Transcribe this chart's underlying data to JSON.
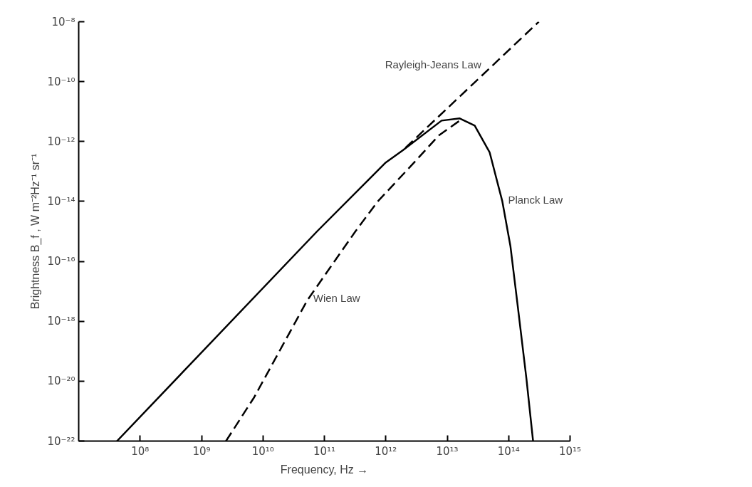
{
  "chart_data": {
    "type": "line",
    "xlabel": "Frequency, Hz →",
    "ylabel": "Brightness B_f , W m⁻²Hz⁻¹ sr⁻¹",
    "log": "xy",
    "grid": false,
    "marker": "none",
    "xlim": [
      10000000.0,
      1000000000000000.0
    ],
    "ylim": [
      1e-22,
      1e-08
    ],
    "xticks": [
      {
        "value": 100000000.0,
        "label": "10⁸"
      },
      {
        "value": 1000000000.0,
        "label": "10⁹"
      },
      {
        "value": 10000000000.0,
        "label": "10¹⁰"
      },
      {
        "value": 100000000000.0,
        "label": "10¹¹"
      },
      {
        "value": 1000000000000.0,
        "label": "10¹²"
      },
      {
        "value": 10000000000000.0,
        "label": "10¹³"
      },
      {
        "value": 100000000000000.0,
        "label": "10¹⁴"
      },
      {
        "value": 1000000000000000.0,
        "label": "10¹⁵"
      }
    ],
    "yticks": [
      {
        "value": 1e-22,
        "label": "10⁻²²"
      },
      {
        "value": 1e-20,
        "label": "10⁻²⁰"
      },
      {
        "value": 1e-18,
        "label": "10⁻¹⁸"
      },
      {
        "value": 1e-16,
        "label": "10⁻¹⁶"
      },
      {
        "value": 1e-14,
        "label": "10⁻¹⁴"
      },
      {
        "value": 1e-12,
        "label": "10⁻¹²"
      },
      {
        "value": 1e-10,
        "label": "10⁻¹⁰"
      },
      {
        "value": 1e-08,
        "label": "10⁻⁸"
      }
    ],
    "series": [
      {
        "color": "#000000",
        "line_style": "solid",
        "x": [
          42000000.0,
          76000000000.0,
          1000000000000.0,
          1900000000000.0,
          8100000000000.0,
          16000000000000.0,
          28000000000000.0,
          49000000000000.0,
          79000000000000.0,
          107000000000000.0,
          140000000000000.0,
          195000000000000.0,
          250000000000000.0
        ],
        "values": [
          1e-22,
          1e-15,
          2e-13,
          5.1e-13,
          5e-12,
          5.9e-12,
          3.4e-12,
          4.4e-13,
          1e-14,
          3.2e-16,
          3.5e-18,
          1.2e-20,
          1e-22
        ]
      },
      {
        "color": "#000000",
        "line_style": "dashed",
        "x": [
          2100000000000.0,
          310000000000000.0
        ],
        "values": [
          6.2e-13,
          1e-08
        ]
      },
      {
        "color": "#000000",
        "line_style": "dashed",
        "x": [
          2500000000.0,
          7200000000.0,
          53000000000.0,
          320000000000.0,
          740000000000.0,
          2900000000000.0,
          7300000000000.0,
          16000000000000.0
        ],
        "values": [
          1e-22,
          2.9e-21,
          5.1e-18,
          1e-15,
          1e-14,
          2e-13,
          1.6e-12,
          5e-12
        ]
      }
    ],
    "annotations": [
      {
        "text": "Rayleigh-Jeans Law",
        "x": 52000000000000.0,
        "y": 3.2e-10
      },
      {
        "text": "Planck Law",
        "x": 79000000000000.0,
        "y": 1e-14
      },
      {
        "text": "Wien Law",
        "x": 53000000000.0,
        "y": 5.1e-18
      }
    ]
  }
}
